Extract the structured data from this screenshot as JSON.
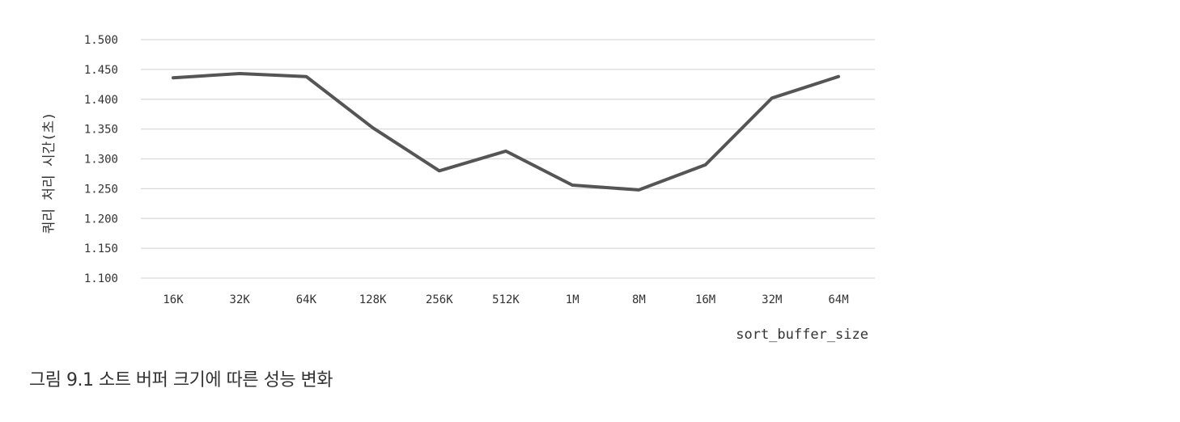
{
  "caption": "그림 9.1 소트 버퍼 크기에 따른 성능 변화",
  "chart_data": {
    "type": "line",
    "categories": [
      "16K",
      "32K",
      "64K",
      "128K",
      "256K",
      "512K",
      "1M",
      "8M",
      "16M",
      "32M",
      "64M"
    ],
    "series": [
      {
        "values": [
          1.436,
          1.443,
          1.438,
          1.352,
          1.28,
          1.313,
          1.256,
          1.248,
          1.29,
          1.402,
          1.438
        ]
      }
    ],
    "yticks": [
      "1.100",
      "1.150",
      "1.200",
      "1.250",
      "1.300",
      "1.350",
      "1.400",
      "1.450",
      "1.500"
    ],
    "ylim": [
      1.1,
      1.5
    ],
    "xlabel": "sort_buffer_size",
    "ylabel": "쿼리 처리 시간(초)",
    "grid": "horizontal",
    "legend": "none",
    "line_color": "#555555",
    "grid_color": "#d9d9d9"
  }
}
